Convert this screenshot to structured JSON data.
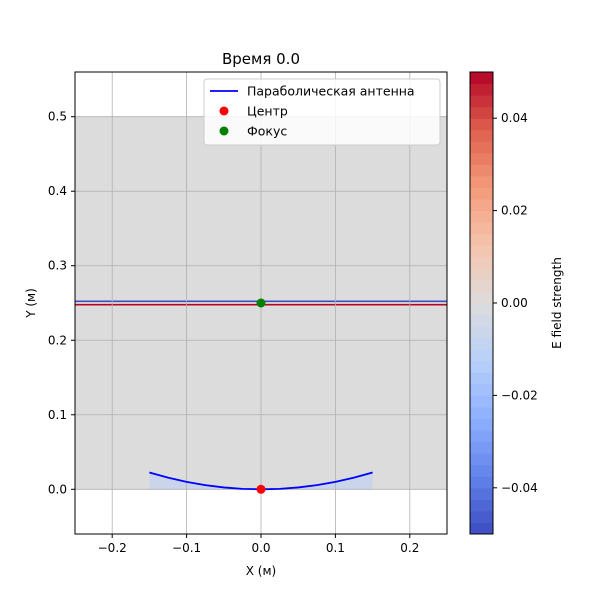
{
  "chart_data": {
    "type": "heatmap",
    "title": "Время 0.0",
    "xlabel": "X (м)",
    "ylabel": "Y (м)",
    "xlim": [
      -0.25,
      0.25
    ],
    "ylim": [
      -0.06,
      0.56
    ],
    "xticks": [
      -0.2,
      -0.1,
      0.0,
      0.1,
      0.2
    ],
    "xtick_labels": [
      "−0.2",
      "−0.1",
      "0.0",
      "0.1",
      "0.2"
    ],
    "yticks": [
      0.0,
      0.1,
      0.2,
      0.3,
      0.4,
      0.5
    ],
    "ytick_labels": [
      "0.0",
      "0.1",
      "0.2",
      "0.3",
      "0.4",
      "0.5"
    ],
    "grid": true,
    "legend_position": "top-right",
    "field": {
      "x_range": [
        -0.25,
        0.25
      ],
      "y_range": [
        0.0,
        0.5
      ],
      "value": 0.0,
      "wavefront": {
        "y": 0.25,
        "width": 0.004
      }
    },
    "series": [
      {
        "name": "Параболическая антенна",
        "kind": "line",
        "color": "#0000ff",
        "x": [
          -0.15,
          -0.125,
          -0.1,
          -0.075,
          -0.05,
          -0.025,
          0.0,
          0.025,
          0.05,
          0.075,
          0.1,
          0.125,
          0.15
        ],
        "y": [
          0.0225,
          0.0156,
          0.01,
          0.0056,
          0.0025,
          0.0006,
          0.0,
          0.0006,
          0.0025,
          0.0056,
          0.01,
          0.0156,
          0.0225
        ]
      },
      {
        "name": "Центр",
        "kind": "point",
        "color": "#ff0000",
        "x": [
          0.0
        ],
        "y": [
          0.0
        ]
      },
      {
        "name": "Фокус",
        "kind": "point",
        "color": "#008000",
        "x": [
          0.0
        ],
        "y": [
          0.25
        ]
      }
    ],
    "colorbar": {
      "label": "E field strength",
      "range": [
        -0.05,
        0.05
      ],
      "ticks": [
        -0.04,
        -0.02,
        0.0,
        0.02,
        0.04
      ],
      "tick_labels": [
        "−0.04",
        "−0.02",
        "0.00",
        "0.02",
        "0.04"
      ],
      "colormap": "coolwarm"
    }
  }
}
